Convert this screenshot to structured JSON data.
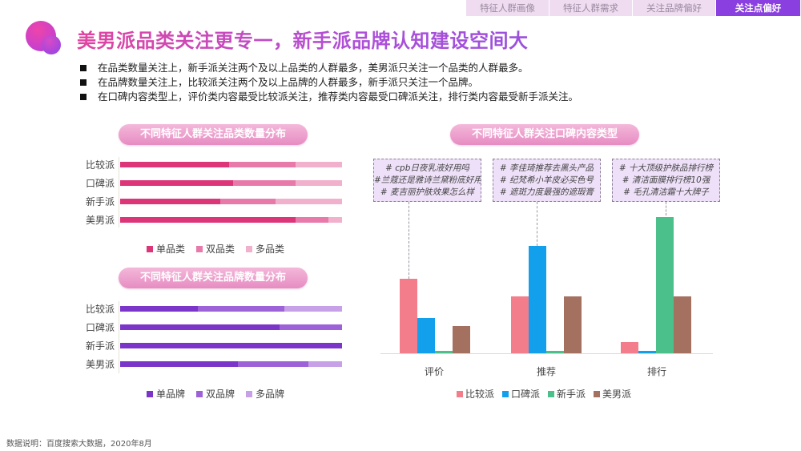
{
  "tabs": [
    {
      "label": "特征人群画像",
      "active": false
    },
    {
      "label": "特征人群需求",
      "active": false
    },
    {
      "label": "关注品牌偏好",
      "active": false
    },
    {
      "label": "关注点偏好",
      "active": true
    }
  ],
  "header": {
    "title": "美男派品类关注更专一，新手派品牌认知建设空间大"
  },
  "bullets": [
    "在品类数量关注上，新手派关注两个及以上品类的人群最多，美男派只关注一个品类的人群最多。",
    "在品牌数量关注上，比较派关注两个及以上品牌的人群最多，新手派只关注一个品牌。",
    "在口碑内容类型上，评价类内容最受比较派关注，推荐类内容最受口碑派关注，排行类内容最受新手派关注。"
  ],
  "footer": "数据说明：百度搜索大数据，2020年8月",
  "colors": {
    "category": [
      "#dc3578",
      "#e87aaa",
      "#f1b0cc"
    ],
    "brand": [
      "#7b35c8",
      "#9d62d8",
      "#c6a1e8"
    ],
    "groups": [
      "#f47d8c",
      "#12a0ec",
      "#4cc08a",
      "#a47060"
    ]
  },
  "chart_data": [
    {
      "type": "bar",
      "orientation": "horizontal-stacked-100",
      "title": "不同特征人群关注品类数量分布",
      "categories": [
        "比较派",
        "口碑派",
        "新手派",
        "美男派"
      ],
      "series": [
        {
          "name": "单品类",
          "values": [
            49,
            51,
            45,
            79
          ]
        },
        {
          "name": "双品类",
          "values": [
            30,
            28,
            25,
            15
          ]
        },
        {
          "name": "多品类",
          "values": [
            21,
            21,
            30,
            6
          ]
        }
      ],
      "xlabel": "",
      "ylabel": "",
      "xlim": [
        0,
        100
      ],
      "grid": false,
      "legend_position": "bottom"
    },
    {
      "type": "bar",
      "orientation": "horizontal-stacked-100",
      "title": "不同特征人群关注品牌数量分布",
      "categories": [
        "比较派",
        "口碑派",
        "新手派",
        "美男派"
      ],
      "series": [
        {
          "name": "单品牌",
          "values": [
            35,
            72,
            100,
            53
          ]
        },
        {
          "name": "双品牌",
          "values": [
            39,
            28,
            0,
            32
          ]
        },
        {
          "name": "多品牌",
          "values": [
            26,
            0,
            0,
            15
          ]
        }
      ],
      "xlabel": "",
      "ylabel": "",
      "xlim": [
        0,
        100
      ],
      "grid": false,
      "legend_position": "bottom"
    },
    {
      "type": "bar",
      "orientation": "vertical-grouped",
      "title": "不同特征人群关注口碑内容类型",
      "categories": [
        "评价",
        "推荐",
        "排行"
      ],
      "series": [
        {
          "name": "比较派",
          "values": [
            55,
            42,
            8
          ]
        },
        {
          "name": "口碑派",
          "values": [
            26,
            79,
            2
          ]
        },
        {
          "name": "新手派",
          "values": [
            2,
            2,
            100
          ]
        },
        {
          "name": "美男派",
          "values": [
            20,
            42,
            42
          ]
        }
      ],
      "annotations": [
        {
          "category": "评价",
          "lines": [
            "# cpb日夜乳液好用吗",
            "#兰蔻还是雅诗兰黛粉底好用",
            "# 麦吉丽护肤效果怎么样"
          ]
        },
        {
          "category": "推荐",
          "lines": [
            "# 李佳琦推荐去黑头产品",
            "# 纪梵希小羊皮必买色号",
            "# 遮斑力度最强的遮瑕膏"
          ]
        },
        {
          "category": "排行",
          "lines": [
            "# 十大顶级护肤品排行榜",
            "# 清洁面膜排行榜10强",
            "# 毛孔清洁霜十大牌子"
          ]
        }
      ],
      "xlabel": "",
      "ylabel": "",
      "ylim": [
        0,
        100
      ],
      "value_scale": "relative (max = 100), estimated from bar heights",
      "grid": false,
      "legend_position": "bottom"
    }
  ]
}
